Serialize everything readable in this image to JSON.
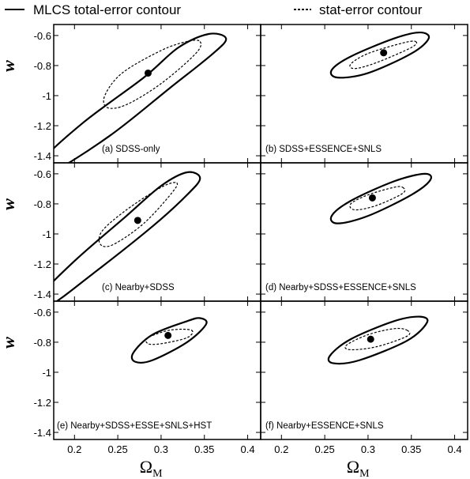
{
  "legend": [
    {
      "name": "MLCS total-error contour",
      "dash": "solid"
    },
    {
      "name": "stat-error contour",
      "dash": "dotted"
    }
  ],
  "chart_data": [
    {
      "type": "contour",
      "label": "(a) SDSS-only",
      "ylabel": "w",
      "xlim": [
        0.176,
        0.415
      ],
      "ylim": [
        -1.447,
        -0.527
      ],
      "xticks": [
        0.2,
        0.25,
        0.3,
        0.35,
        0.4
      ],
      "yticks": [
        -0.6,
        -0.8,
        -1,
        -1.2,
        -1.4
      ],
      "contours": [
        {
          "x": [
            0.355,
            0.375,
            0.36,
            0.31,
            0.24,
            0.17,
            0.16,
            0.21,
            0.28,
            0.32
          ],
          "y": [
            -0.59,
            -0.62,
            -0.72,
            -0.95,
            -1.27,
            -1.52,
            -1.45,
            -1.18,
            -0.88,
            -0.68
          ]
        },
        {
          "x": [
            0.345,
            0.34,
            0.3,
            0.26,
            0.238,
            0.235,
            0.255,
            0.3,
            0.33
          ],
          "y": [
            -0.64,
            -0.72,
            -0.92,
            -1.06,
            -1.08,
            -1.0,
            -0.85,
            -0.7,
            -0.64
          ]
        }
      ],
      "best_fit": {
        "x": 0.285,
        "y": -0.85
      }
    },
    {
      "type": "contour",
      "label": "(b) SDSS+ESSENCE+SNLS",
      "xlim": [
        0.176,
        0.415
      ],
      "ylim": [
        -1.447,
        -0.527
      ],
      "xticks": [
        0.2,
        0.25,
        0.3,
        0.35,
        0.4
      ],
      "yticks": [
        -0.6,
        -0.8,
        -1,
        -1.2,
        -1.4
      ],
      "contours": [
        {
          "x": [
            0.36,
            0.37,
            0.35,
            0.3,
            0.265,
            0.258,
            0.28,
            0.33
          ],
          "y": [
            -0.58,
            -0.62,
            -0.72,
            -0.85,
            -0.88,
            -0.83,
            -0.74,
            -0.62
          ]
        },
        {
          "x": [
            0.355,
            0.35,
            0.31,
            0.285,
            0.28,
            0.3,
            0.34
          ],
          "y": [
            -0.64,
            -0.68,
            -0.78,
            -0.82,
            -0.79,
            -0.72,
            -0.65
          ]
        }
      ],
      "best_fit": {
        "x": 0.318,
        "y": -0.715
      }
    },
    {
      "type": "contour",
      "label": "(c) Nearby+SDSS",
      "ylabel": "w",
      "xlim": [
        0.176,
        0.415
      ],
      "ylim": [
        -1.447,
        -0.527
      ],
      "xticks": [
        0.2,
        0.25,
        0.3,
        0.35,
        0.4
      ],
      "yticks": [
        -0.6,
        -0.8,
        -1,
        -1.2,
        -1.4
      ],
      "contours": [
        {
          "x": [
            0.33,
            0.345,
            0.33,
            0.29,
            0.22,
            0.17,
            0.16,
            0.2,
            0.26,
            0.3
          ],
          "y": [
            -0.59,
            -0.63,
            -0.74,
            -0.95,
            -1.27,
            -1.48,
            -1.42,
            -1.18,
            -0.88,
            -0.68
          ]
        },
        {
          "x": [
            0.318,
            0.312,
            0.28,
            0.245,
            0.23,
            0.232,
            0.26,
            0.3
          ],
          "y": [
            -0.66,
            -0.73,
            -0.93,
            -1.07,
            -1.07,
            -0.98,
            -0.84,
            -0.69
          ]
        }
      ],
      "best_fit": {
        "x": 0.273,
        "y": -0.91
      }
    },
    {
      "type": "contour",
      "label": "(d) Nearby+SDSS+ESSENCE+SNLS",
      "xlim": [
        0.176,
        0.415
      ],
      "ylim": [
        -1.447,
        -0.527
      ],
      "xticks": [
        0.2,
        0.25,
        0.3,
        0.35,
        0.4
      ],
      "yticks": [
        -0.6,
        -0.8,
        -1,
        -1.2,
        -1.4
      ],
      "contours": [
        {
          "x": [
            0.365,
            0.372,
            0.35,
            0.3,
            0.265,
            0.258,
            0.28,
            0.33
          ],
          "y": [
            -0.6,
            -0.64,
            -0.74,
            -0.88,
            -0.93,
            -0.88,
            -0.78,
            -0.65
          ]
        },
        {
          "x": [
            0.34,
            0.34,
            0.31,
            0.285,
            0.28,
            0.3,
            0.33
          ],
          "y": [
            -0.69,
            -0.73,
            -0.81,
            -0.84,
            -0.8,
            -0.74,
            -0.69
          ]
        }
      ],
      "best_fit": {
        "x": 0.305,
        "y": -0.76
      }
    },
    {
      "type": "contour",
      "label": "(e) Nearby+SDSS+ESSE+SNLS+HST",
      "ylabel": "w",
      "xlabel": "Ω",
      "xlabel_sub": "M",
      "xlim": [
        0.176,
        0.415
      ],
      "ylim": [
        -1.447,
        -0.527
      ],
      "xticks": [
        0.2,
        0.25,
        0.3,
        0.35,
        0.4
      ],
      "yticks": [
        -0.6,
        -0.8,
        -1,
        -1.2,
        -1.4
      ],
      "contours": [
        {
          "x": [
            0.345,
            0.352,
            0.33,
            0.29,
            0.27,
            0.268,
            0.29,
            0.33
          ],
          "y": [
            -0.64,
            -0.68,
            -0.8,
            -0.92,
            -0.93,
            -0.87,
            -0.75,
            -0.66
          ]
        },
        {
          "x": [
            0.335,
            0.33,
            0.3,
            0.285,
            0.285,
            0.31
          ],
          "y": [
            -0.72,
            -0.77,
            -0.81,
            -0.81,
            -0.77,
            -0.72
          ]
        }
      ],
      "best_fit": {
        "x": 0.308,
        "y": -0.755
      }
    },
    {
      "type": "contour",
      "label": "(f) Nearby+ESSENCE+SNLS",
      "xlabel": "Ω",
      "xlabel_sub": "M",
      "xlim": [
        0.176,
        0.415
      ],
      "ylim": [
        -1.447,
        -0.527
      ],
      "xticks": [
        0.2,
        0.25,
        0.3,
        0.35,
        0.4
      ],
      "yticks": [
        -0.6,
        -0.8,
        -1,
        -1.2,
        -1.4
      ],
      "contours": [
        {
          "x": [
            0.36,
            0.368,
            0.345,
            0.29,
            0.26,
            0.256,
            0.28,
            0.33
          ],
          "y": [
            -0.63,
            -0.67,
            -0.79,
            -0.92,
            -0.94,
            -0.89,
            -0.78,
            -0.66
          ]
        },
        {
          "x": [
            0.345,
            0.345,
            0.31,
            0.28,
            0.275,
            0.3,
            0.33
          ],
          "y": [
            -0.72,
            -0.76,
            -0.83,
            -0.85,
            -0.82,
            -0.75,
            -0.71
          ]
        }
      ],
      "best_fit": {
        "x": 0.303,
        "y": -0.78
      }
    }
  ]
}
